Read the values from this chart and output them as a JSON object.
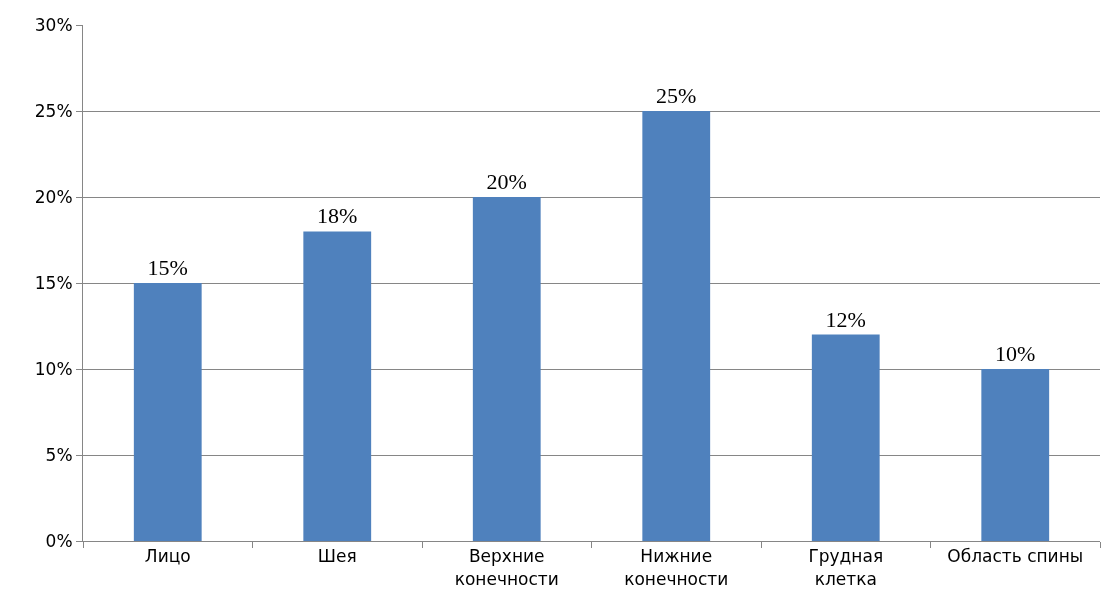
{
  "chart_data": {
    "type": "bar",
    "categories": [
      "Лицо",
      "Шея",
      "Верхние конечности",
      "Нижние конечности",
      "Грудная клетка",
      "Область спины"
    ],
    "values": [
      15,
      18,
      20,
      25,
      12,
      10
    ],
    "color": "#4f81bd",
    "value_labels": [
      "15%",
      "18%",
      "20%",
      "25%",
      "12%",
      "10%"
    ],
    "ylim": [
      0,
      30
    ],
    "yticks": [
      {
        "value": 0,
        "label": "0%"
      },
      {
        "value": 5,
        "label": "5%"
      },
      {
        "value": 10,
        "label": "10%"
      },
      {
        "value": 15,
        "label": "15%"
      },
      {
        "value": 20,
        "label": "20%"
      },
      {
        "value": 25,
        "label": "25%"
      },
      {
        "value": 30,
        "label": "30%"
      }
    ],
    "grid": "y"
  }
}
